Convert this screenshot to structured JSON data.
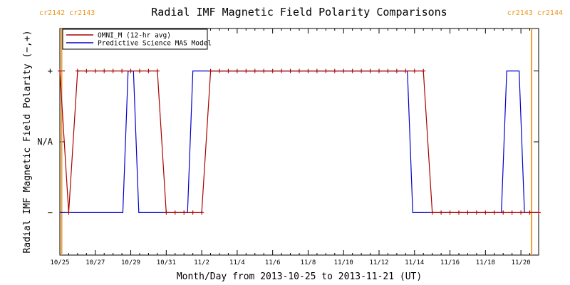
{
  "chart_data": {
    "type": "line",
    "title": "Radial IMF Magnetic Field Polarity Comparisons",
    "xlabel": "Month/Day from 2013-10-25 to 2013-11-21 (UT)",
    "ylabel": "Radial IMF Magnetic Field Polarity (−,+)",
    "xlim": [
      0,
      27
    ],
    "ylim": [
      -1.6,
      1.6
    ],
    "x_ticks": [
      {
        "x": 0,
        "label": "10/25"
      },
      {
        "x": 2,
        "label": "10/27"
      },
      {
        "x": 4,
        "label": "10/29"
      },
      {
        "x": 6,
        "label": "10/31"
      },
      {
        "x": 8,
        "label": "11/2"
      },
      {
        "x": 10,
        "label": "11/4"
      },
      {
        "x": 12,
        "label": "11/6"
      },
      {
        "x": 14,
        "label": "11/8"
      },
      {
        "x": 16,
        "label": "11/10"
      },
      {
        "x": 18,
        "label": "11/12"
      },
      {
        "x": 20,
        "label": "11/14"
      },
      {
        "x": 22,
        "label": "11/16"
      },
      {
        "x": 24,
        "label": "11/18"
      },
      {
        "x": 26,
        "label": "11/20"
      }
    ],
    "y_ticks": [
      {
        "y": 1,
        "label": "+"
      },
      {
        "y": 0,
        "label": "N/A"
      },
      {
        "y": -1,
        "label": "−"
      }
    ],
    "carrington_markers": [
      {
        "x": 0.1,
        "labels": [
          "cr2142",
          "cr2143"
        ]
      },
      {
        "x": 26.6,
        "labels": [
          "cr2143",
          "cr2144"
        ]
      }
    ],
    "legend_position": "top-left",
    "series": [
      {
        "name": "OMNI_M (12-hr avg)",
        "color": "#aa0000",
        "markers": true,
        "x": [
          0,
          0.5,
          1.0,
          1.5,
          2.0,
          2.5,
          3.0,
          3.5,
          4.0,
          4.5,
          5.0,
          5.5,
          6.0,
          6.5,
          7.0,
          7.5,
          8.0,
          8.5,
          9.0,
          9.5,
          10.0,
          10.5,
          11.0,
          11.5,
          12.0,
          12.5,
          13.0,
          13.5,
          14.0,
          14.5,
          15.0,
          15.5,
          16.0,
          16.5,
          17.0,
          17.5,
          18.0,
          18.5,
          19.0,
          19.5,
          20.0,
          20.5,
          21.0,
          21.5,
          22.0,
          22.5,
          23.0,
          23.5,
          24.0,
          24.5,
          25.0,
          25.5,
          26.0,
          26.5,
          27.0
        ],
        "y": [
          1,
          -1,
          1,
          1,
          1,
          1,
          1,
          1,
          1,
          1,
          1,
          1,
          -1,
          -1,
          -1,
          -1,
          -1,
          1,
          1,
          1,
          1,
          1,
          1,
          1,
          1,
          1,
          1,
          1,
          1,
          1,
          1,
          1,
          1,
          1,
          1,
          1,
          1,
          1,
          1,
          1,
          1,
          1,
          -1,
          -1,
          -1,
          -1,
          -1,
          -1,
          -1,
          -1,
          -1,
          -1,
          -1,
          -1,
          -1
        ]
      },
      {
        "name": "Predictive Science MAS Model",
        "color": "#0000cc",
        "markers": false,
        "x": [
          0,
          0.25,
          3.55,
          3.85,
          4.15,
          4.45,
          7.2,
          7.5,
          19.6,
          19.9,
          24.9,
          25.2,
          25.9,
          26.2,
          27.0
        ],
        "y": [
          -1,
          -1,
          -1,
          1,
          1,
          -1,
          -1,
          1,
          1,
          -1,
          -1,
          1,
          1,
          -1,
          -1
        ]
      }
    ]
  }
}
